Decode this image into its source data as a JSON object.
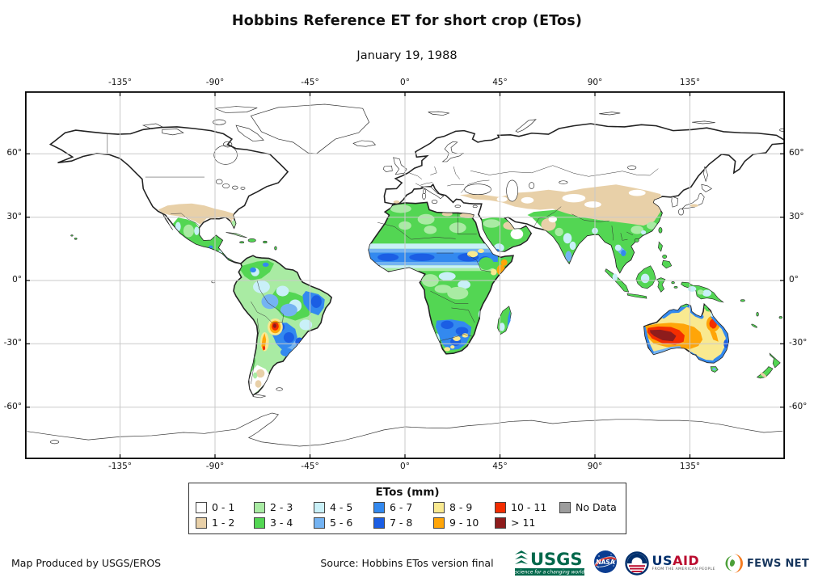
{
  "title": "Hobbins Reference ET for short crop (ETos)",
  "subtitle": "January 19, 1988",
  "map": {
    "lon_ticks": [
      {
        "label": "-135°",
        "value": -135
      },
      {
        "label": "-90°",
        "value": -90
      },
      {
        "label": "-45°",
        "value": -45
      },
      {
        "label": "0°",
        "value": 0
      },
      {
        "label": "45°",
        "value": 45
      },
      {
        "label": "90°",
        "value": 90
      },
      {
        "label": "135°",
        "value": 135
      }
    ],
    "lat_ticks": [
      {
        "label": "60°",
        "value": 60
      },
      {
        "label": "30°",
        "value": 30
      },
      {
        "label": "0°",
        "value": 0
      },
      {
        "label": "-30°",
        "value": -30
      },
      {
        "label": "-60°",
        "value": -60
      }
    ]
  },
  "legend": {
    "title": "ETos (mm)",
    "items": [
      {
        "label": "0 - 1",
        "color": "#ffffff"
      },
      {
        "label": "1 - 2",
        "color": "#e8d0a8"
      },
      {
        "label": "2 - 3",
        "color": "#a9eba3"
      },
      {
        "label": "3 - 4",
        "color": "#53d653"
      },
      {
        "label": "4 - 5",
        "color": "#c9f0f8"
      },
      {
        "label": "5 - 6",
        "color": "#74b3f2"
      },
      {
        "label": "6 - 7",
        "color": "#3389ef"
      },
      {
        "label": "7 - 8",
        "color": "#1b5ee4"
      },
      {
        "label": "8 - 9",
        "color": "#f9e990"
      },
      {
        "label": "9 - 10",
        "color": "#ffa508"
      },
      {
        "label": "10 - 11",
        "color": "#f32d00"
      },
      {
        "label": "> 11",
        "color": "#8e1c1c"
      },
      {
        "label": "No Data",
        "color": "#9c9c9c"
      }
    ]
  },
  "map_observations": [
    {
      "region": "Northern high latitudes (Canada, Siberia, Europe)",
      "etos_class": "0 - 1"
    },
    {
      "region": "Southern USA, Middle East, Central Asia, China belt",
      "etos_class": "1 - 2"
    },
    {
      "region": "North Africa, Arabia, India, SE Asia",
      "etos_class": "2 - 4"
    },
    {
      "region": "Sahel band and sub-Saharan Africa",
      "etos_class": "5 - 8"
    },
    {
      "region": "Eastern Brazil and Amazon margins",
      "etos_class": "5 - 8"
    },
    {
      "region": "Bolivia/Paraguay hotspot",
      "etos_class": "10 - >11"
    },
    {
      "region": "Southern Africa with yellow patches",
      "etos_class": "6 - 9"
    },
    {
      "region": "Interior Australia core",
      "etos_class": "> 11"
    }
  ],
  "footer": {
    "produced_by": "Map Produced by USGS/EROS",
    "source": "Source: Hobbins ETos version final",
    "logos": [
      {
        "name": "USGS",
        "tagline": "science for a changing world"
      },
      {
        "name": "NASA"
      },
      {
        "name": "USAID",
        "name_part1": "US",
        "name_part2": "AID",
        "tagline": "FROM THE AMERICAN PEOPLE"
      },
      {
        "name": "FEWS NET"
      }
    ]
  },
  "colors": {
    "grid": "#c9c9c9",
    "usgs_green": "#00684b",
    "nasa_blue": "#0b3d91",
    "nasa_red": "#e03c31",
    "usaid_blue": "#002f6c",
    "usaid_red": "#ba0c2f",
    "fews_orange": "#f47b20",
    "fews_green": "#4c9f38",
    "fews_navy": "#17365d"
  }
}
